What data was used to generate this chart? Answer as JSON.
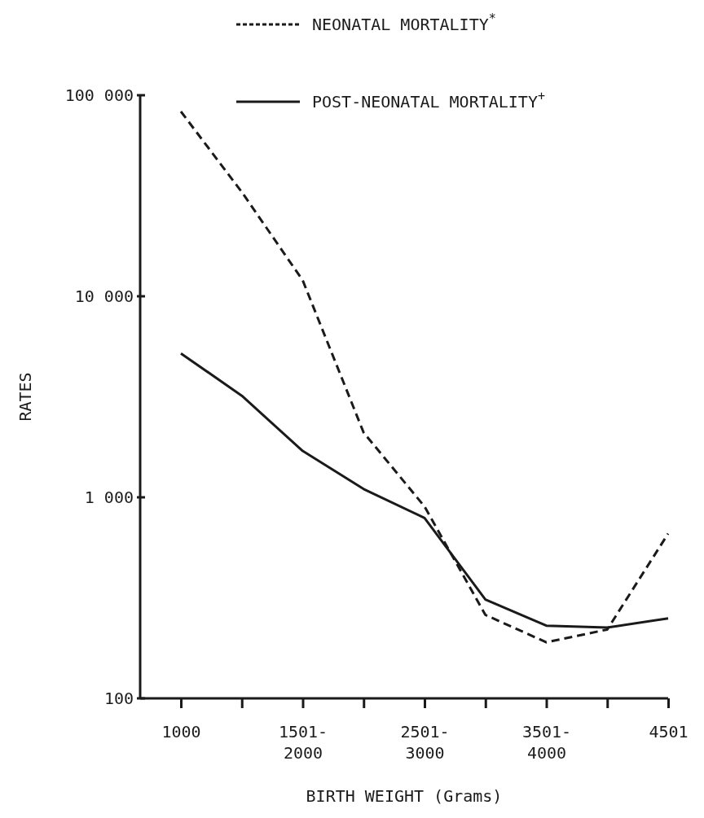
{
  "chart_data": {
    "type": "line",
    "xlabel": "BIRTH WEIGHT (Grams)",
    "ylabel": "RATES",
    "categories": [
      "1000",
      null,
      "1501-\n2000",
      null,
      "2501-\n3000",
      null,
      "3501-\n4000",
      null,
      "4501"
    ],
    "series": [
      {
        "name": "NEONATAL MORTALITY$^{*}$",
        "color": "#1a1a1a",
        "line_style": "dashed",
        "values": [
          83000,
          33000,
          12000,
          2100,
          900,
          260,
          190,
          220,
          660
        ]
      },
      {
        "name": "POST-NEONATAL MORTALITY$^{+}$",
        "color": "#1a1a1a",
        "line_style": "solid",
        "values": [
          5200,
          3200,
          1700,
          1100,
          790,
          310,
          230,
          225,
          250
        ]
      }
    ],
    "log": "y",
    "ylim": [
      100,
      100000
    ],
    "yticks": [
      100,
      {
        "value": 1000,
        "label": "1 000"
      },
      {
        "value": 10000,
        "label": "10 000"
      },
      {
        "value": 100000,
        "label": "100 000"
      }
    ],
    "grid": false,
    "legend": "top",
    "marker": "none"
  }
}
